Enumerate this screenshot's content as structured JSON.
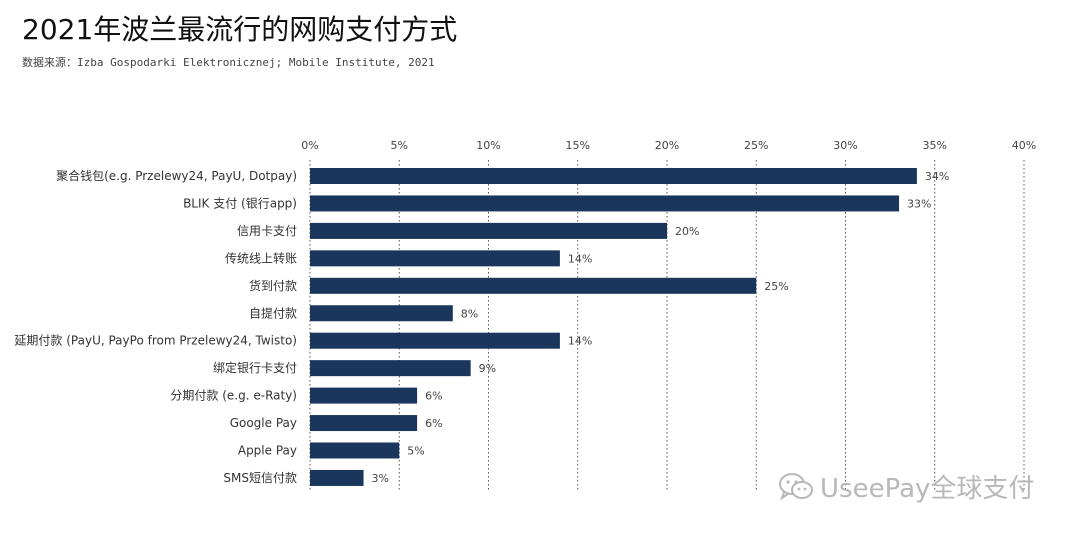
{
  "title": "2021年波兰最流行的网购支付方式",
  "subtitle": "数据来源：Izba Gospodarki Elektronicznej; Mobile Institute, 2021",
  "watermark": {
    "text": "UseePay全球支付",
    "icon": "wechat-icon",
    "color": "#b8b8b8"
  },
  "colors": {
    "bar": "#1b365d",
    "grid": "#555555"
  },
  "chart_data": {
    "type": "bar",
    "orientation": "horizontal",
    "categories": [
      "聚合钱包(e.g. Przelewy24, PayU, Dotpay)",
      "BLIK 支付 (银行app)",
      "信用卡支付",
      "传统线上转账",
      "货到付款",
      "自提付款",
      "延期付款 (PayU, PayPo from Przelewy24, Twisto)",
      "绑定银行卡支付",
      "分期付款 (e.g. e-Raty)",
      "Google Pay",
      "Apple Pay",
      "SMS短信付款"
    ],
    "values": [
      34,
      33,
      20,
      14,
      25,
      8,
      14,
      9,
      6,
      6,
      5,
      3
    ],
    "value_labels": [
      "34%",
      "33%",
      "20%",
      "14%",
      "25%",
      "8%",
      "14%",
      "9%",
      "6%",
      "6%",
      "5%",
      "3%"
    ],
    "xlim": [
      0,
      40
    ],
    "xticks": [
      0,
      5,
      10,
      15,
      20,
      25,
      30,
      35,
      40
    ],
    "xtick_labels": [
      "0%",
      "5%",
      "10%",
      "15%",
      "20%",
      "25%",
      "30%",
      "35%",
      "40%"
    ],
    "grid": "dotted vertical",
    "axis_position": "top"
  }
}
